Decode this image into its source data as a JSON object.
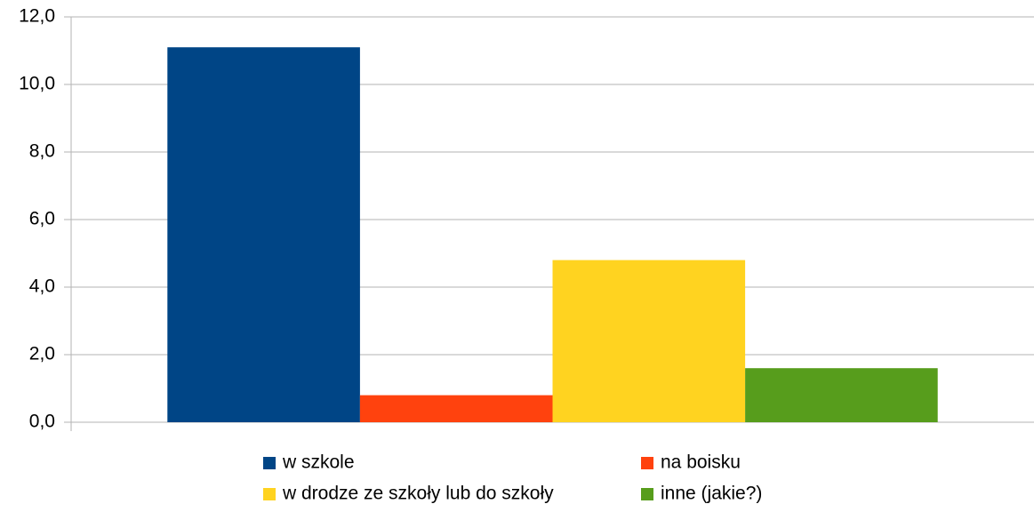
{
  "chart_data": {
    "type": "bar",
    "categories": [
      null
    ],
    "series": [
      {
        "name": "w szkole",
        "color": "#004586",
        "values": [
          11.1
        ]
      },
      {
        "name": "na boisku",
        "color": "#ff420e",
        "values": [
          0.8
        ]
      },
      {
        "name": "w drodze ze szkoły lub do szkoły",
        "color": "#ffd320",
        "values": [
          4.8
        ]
      },
      {
        "name": "inne (jakie?)",
        "color": "#579d1c",
        "values": [
          1.6
        ]
      }
    ],
    "ylim": [
      0,
      12
    ],
    "yticks": [
      {
        "value": 0,
        "label": "0,0"
      },
      {
        "value": 2,
        "label": "2,0"
      },
      {
        "value": 4,
        "label": "4,0"
      },
      {
        "value": 6,
        "label": "6,0"
      },
      {
        "value": 8,
        "label": "8,0"
      },
      {
        "value": 10,
        "label": "10,0"
      },
      {
        "value": 12,
        "label": "12,0"
      }
    ],
    "grid": true,
    "legend": "bottom"
  }
}
